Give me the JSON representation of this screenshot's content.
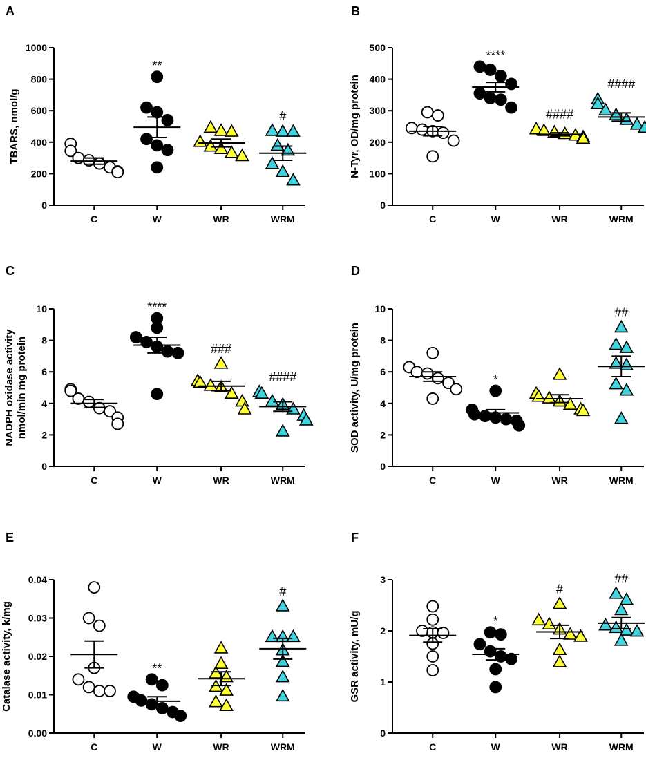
{
  "colors": {
    "C": "#ffffff",
    "W": "#000000",
    "WR": "#ffff33",
    "WRM": "#40d4e0",
    "stroke": "#000000"
  },
  "markers": {
    "C": "circle",
    "W": "circle",
    "WR": "triangle",
    "WRM": "triangle"
  },
  "chart_data": [
    {
      "panel": "A",
      "type": "scatter",
      "title": "",
      "ylabel": "TBARS, nmol/g",
      "ylim": [
        0,
        1000
      ],
      "yticks": [
        0,
        200,
        400,
        600,
        800,
        1000
      ],
      "ytick_labels": [
        "0",
        "200",
        "400",
        "600",
        "800",
        "1000"
      ],
      "categories": [
        "C",
        "W",
        "WR",
        "WRM"
      ],
      "series": [
        {
          "name": "C",
          "values": [
            390,
            345,
            300,
            285,
            265,
            240,
            215,
            210
          ],
          "mean": 280,
          "sem": 20,
          "annotation": ""
        },
        {
          "name": "W",
          "values": [
            815,
            620,
            590,
            540,
            420,
            380,
            350,
            240
          ],
          "mean": 495,
          "sem": 65,
          "annotation": "**"
        },
        {
          "name": "WR",
          "values": [
            490,
            470,
            465,
            400,
            370,
            355,
            330,
            310
          ],
          "mean": 395,
          "sem": 25,
          "annotation": ""
        },
        {
          "name": "WRM",
          "values": [
            470,
            465,
            465,
            375,
            345,
            260,
            210,
            155
          ],
          "mean": 330,
          "sem": 45,
          "annotation": "#"
        }
      ]
    },
    {
      "panel": "B",
      "type": "scatter",
      "title": "",
      "ylabel": "N-Tyr, OD/mg protein",
      "ylim": [
        0,
        500
      ],
      "yticks": [
        0,
        100,
        200,
        300,
        400,
        500
      ],
      "ytick_labels": [
        "0",
        "100",
        "200",
        "300",
        "400",
        "500"
      ],
      "categories": [
        "C",
        "W",
        "WR",
        "WRM"
      ],
      "series": [
        {
          "name": "C",
          "values": [
            295,
            285,
            245,
            240,
            235,
            230,
            205,
            155
          ],
          "mean": 235,
          "sem": 15,
          "annotation": ""
        },
        {
          "name": "W",
          "values": [
            440,
            430,
            410,
            385,
            355,
            340,
            335,
            310
          ],
          "mean": 375,
          "sem": 15,
          "annotation": "****"
        },
        {
          "name": "WR",
          "values": [
            240,
            240,
            235,
            230,
            225,
            220,
            215,
            210
          ],
          "mean": 225,
          "sem": 5,
          "annotation": "####"
        },
        {
          "name": "WRM",
          "values": [
            335,
            320,
            300,
            285,
            270,
            255,
            245,
            245
          ],
          "mean": 280,
          "sem": 13,
          "annotation": "####"
        }
      ]
    },
    {
      "panel": "C",
      "type": "scatter",
      "title": "",
      "ylabel": "NADPH oxidase activity nmol/min mg protein",
      "ylabel_lines": [
        "NADPH oxidase activity",
        "nmol/min mg protein"
      ],
      "ylim": [
        0,
        10
      ],
      "yticks": [
        0,
        2,
        4,
        6,
        8,
        10
      ],
      "ytick_labels": [
        "0",
        "2",
        "4",
        "6",
        "8",
        "10"
      ],
      "categories": [
        "C",
        "W",
        "WR",
        "WRM"
      ],
      "series": [
        {
          "name": "C",
          "values": [
            4.9,
            4.8,
            4.3,
            4.1,
            3.7,
            3.5,
            3.1,
            2.7
          ],
          "mean": 4.0,
          "sem": 0.25,
          "annotation": ""
        },
        {
          "name": "W",
          "values": [
            9.4,
            8.8,
            8.2,
            7.9,
            7.6,
            7.3,
            7.2,
            4.6
          ],
          "mean": 7.7,
          "sem": 0.5,
          "annotation": "****"
        },
        {
          "name": "WR",
          "values": [
            6.5,
            5.4,
            5.3,
            5.1,
            5.0,
            4.6,
            4.1,
            3.6
          ],
          "mean": 5.1,
          "sem": 0.3,
          "annotation": "###"
        },
        {
          "name": "WRM",
          "values": [
            4.7,
            4.6,
            4.1,
            3.9,
            3.6,
            3.2,
            2.9,
            2.2
          ],
          "mean": 3.8,
          "sem": 0.3,
          "annotation": "####"
        }
      ]
    },
    {
      "panel": "D",
      "type": "scatter",
      "title": "",
      "ylabel": "SOD activity, U/mg protein",
      "ylim": [
        0,
        10
      ],
      "yticks": [
        0,
        2,
        4,
        6,
        8,
        10
      ],
      "ytick_labels": [
        "0",
        "2",
        "4",
        "6",
        "8",
        "10"
      ],
      "categories": [
        "C",
        "W",
        "WR",
        "WRM"
      ],
      "series": [
        {
          "name": "C",
          "values": [
            7.2,
            6.3,
            6.0,
            5.9,
            5.6,
            5.3,
            4.9,
            4.3
          ],
          "mean": 5.7,
          "sem": 0.3,
          "annotation": ""
        },
        {
          "name": "W",
          "values": [
            4.8,
            3.6,
            3.3,
            3.2,
            3.1,
            3.0,
            2.9,
            2.6
          ],
          "mean": 3.4,
          "sem": 0.2,
          "annotation": "*"
        },
        {
          "name": "WR",
          "values": [
            5.8,
            4.6,
            4.4,
            4.3,
            4.1,
            3.9,
            3.6,
            3.5
          ],
          "mean": 4.3,
          "sem": 0.25,
          "annotation": ""
        },
        {
          "name": "WRM",
          "values": [
            8.8,
            7.7,
            7.5,
            6.5,
            6.4,
            5.2,
            4.8,
            3.0
          ],
          "mean": 6.35,
          "sem": 0.65,
          "annotation": "##"
        }
      ]
    },
    {
      "panel": "E",
      "type": "scatter",
      "title": "",
      "ylabel": "Catalase activity, k/mg",
      "ylim": [
        0,
        0.04
      ],
      "yticks": [
        0,
        0.01,
        0.02,
        0.03,
        0.04
      ],
      "ytick_labels": [
        "0.00",
        "0.01",
        "0.02",
        "0.03",
        "0.04"
      ],
      "categories": [
        "C",
        "W",
        "WR",
        "WRM"
      ],
      "series": [
        {
          "name": "C",
          "values": [
            0.038,
            0.03,
            0.028,
            0.017,
            0.014,
            0.012,
            0.011,
            0.011
          ],
          "mean": 0.0205,
          "sem": 0.0035,
          "annotation": ""
        },
        {
          "name": "W",
          "values": [
            0.014,
            0.0125,
            0.0095,
            0.0085,
            0.0075,
            0.0065,
            0.0055,
            0.0045
          ],
          "mean": 0.0083,
          "sem": 0.0012,
          "annotation": "**"
        },
        {
          "name": "WR",
          "values": [
            0.022,
            0.018,
            0.0155,
            0.0145,
            0.012,
            0.011,
            0.008,
            0.007
          ],
          "mean": 0.0142,
          "sem": 0.0018,
          "annotation": ""
        },
        {
          "name": "WRM",
          "values": [
            0.033,
            0.025,
            0.025,
            0.025,
            0.0215,
            0.0185,
            0.0145,
            0.0095
          ],
          "mean": 0.022,
          "sem": 0.0027,
          "annotation": "#"
        }
      ]
    },
    {
      "panel": "F",
      "type": "scatter",
      "title": "",
      "ylabel": "GSR activity, mU/g",
      "ylim": [
        0,
        3
      ],
      "yticks": [
        0,
        1,
        2,
        3
      ],
      "ytick_labels": [
        "0",
        "1",
        "2",
        "3"
      ],
      "categories": [
        "C",
        "W",
        "WR",
        "WRM"
      ],
      "series": [
        {
          "name": "C",
          "values": [
            2.48,
            2.22,
            2.0,
            1.97,
            1.96,
            1.75,
            1.5,
            1.23
          ],
          "mean": 1.91,
          "sem": 0.13,
          "annotation": ""
        },
        {
          "name": "W",
          "values": [
            1.97,
            1.93,
            1.74,
            1.6,
            1.5,
            1.45,
            1.25,
            0.9
          ],
          "mean": 1.54,
          "sem": 0.11,
          "annotation": "*"
        },
        {
          "name": "WR",
          "values": [
            2.52,
            2.2,
            2.12,
            2.02,
            1.92,
            1.88,
            1.62,
            1.38
          ],
          "mean": 1.98,
          "sem": 0.13,
          "annotation": "#"
        },
        {
          "name": "WRM",
          "values": [
            2.72,
            2.6,
            2.4,
            2.1,
            2.05,
            2.0,
            1.98,
            1.8
          ],
          "mean": 2.15,
          "sem": 0.11,
          "annotation": "##"
        }
      ]
    }
  ]
}
